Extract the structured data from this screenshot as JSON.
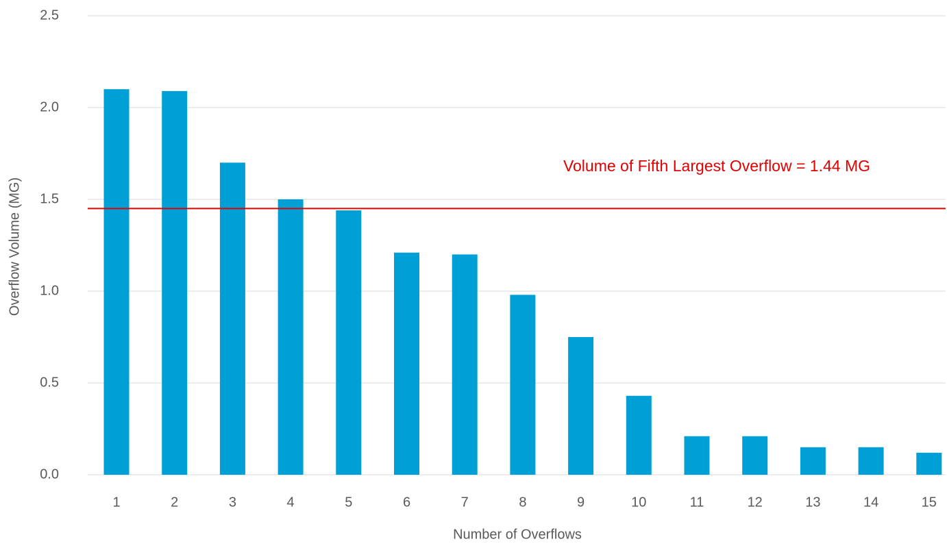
{
  "chart_data": {
    "type": "bar",
    "x_label": "Number of Overflows",
    "y_label": "Overflow Volume (MG)",
    "categories": [
      "1",
      "2",
      "3",
      "4",
      "5",
      "6",
      "7",
      "8",
      "9",
      "10",
      "11",
      "12",
      "13",
      "14",
      "15"
    ],
    "values": [
      2.1,
      2.09,
      1.7,
      1.5,
      1.44,
      1.21,
      1.2,
      0.98,
      0.75,
      0.43,
      0.21,
      0.21,
      0.15,
      0.15,
      0.12
    ],
    "color": "#009fd6",
    "ylim": [
      0,
      2.5
    ],
    "yticks": [
      {
        "value": 0,
        "label": "0.0"
      },
      {
        "value": 0.5,
        "label": "0.5"
      },
      {
        "value": 1,
        "label": "1.0"
      },
      {
        "value": 1.5,
        "label": "1.5"
      },
      {
        "value": 2,
        "label": "2.0"
      },
      {
        "value": 2.5,
        "label": "2.5"
      }
    ],
    "grid": true,
    "reference_line": {
      "value": 1.45,
      "color": "#e00000",
      "label": "Volume of Fifth Largest Overflow = 1.44 MG"
    }
  }
}
